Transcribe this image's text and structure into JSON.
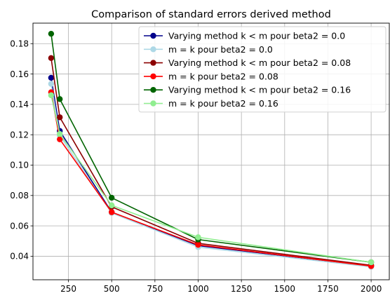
{
  "chart_data": {
    "type": "line",
    "title": "Comparison of standard errors derived method",
    "xlabel": "",
    "ylabel": "",
    "x": [
      150,
      200,
      500,
      1000,
      2000
    ],
    "xlim": [
      45,
      2105
    ],
    "ylim": [
      0.0245,
      0.1935
    ],
    "xticks": [
      250,
      500,
      750,
      1000,
      1250,
      1500,
      1750,
      2000
    ],
    "xtick_labels": [
      "250",
      "500",
      "750",
      "1000",
      "1250",
      "1500",
      "1750",
      "2000"
    ],
    "yticks": [
      0.04,
      0.06,
      0.08,
      0.1,
      0.12,
      0.14,
      0.16,
      0.18
    ],
    "ytick_labels": [
      "0.04",
      "0.06",
      "0.08",
      "0.10",
      "0.12",
      "0.14",
      "0.16",
      "0.18"
    ],
    "grid": true,
    "legend_position": "top-right",
    "series": [
      {
        "name": "Varying method k < m pour beta2 = 0.0",
        "color": "#00008b",
        "values": [
          0.1575,
          0.1225,
          0.069,
          0.047,
          0.0335
        ]
      },
      {
        "name": "m = k pour beta2 = 0.0",
        "color": "#add8e6",
        "values": [
          0.1535,
          0.1195,
          0.0685,
          0.046,
          0.033
        ]
      },
      {
        "name": "Varying method k < m pour beta2 = 0.08",
        "color": "#8b0000",
        "values": [
          0.1705,
          0.1315,
          0.0725,
          0.0485,
          0.034
        ]
      },
      {
        "name": "m = k pour beta2 = 0.08",
        "color": "#ff0000",
        "values": [
          0.148,
          0.117,
          0.069,
          0.0475,
          0.0335
        ]
      },
      {
        "name": "Varying method k < m pour beta2 = 0.16",
        "color": "#006400",
        "values": [
          0.1865,
          0.1435,
          0.0785,
          0.051,
          0.036
        ]
      },
      {
        "name": "m = k pour beta2 = 0.16",
        "color": "#90ee90",
        "values": [
          0.146,
          0.1205,
          0.0735,
          0.0525,
          0.036
        ]
      }
    ]
  }
}
